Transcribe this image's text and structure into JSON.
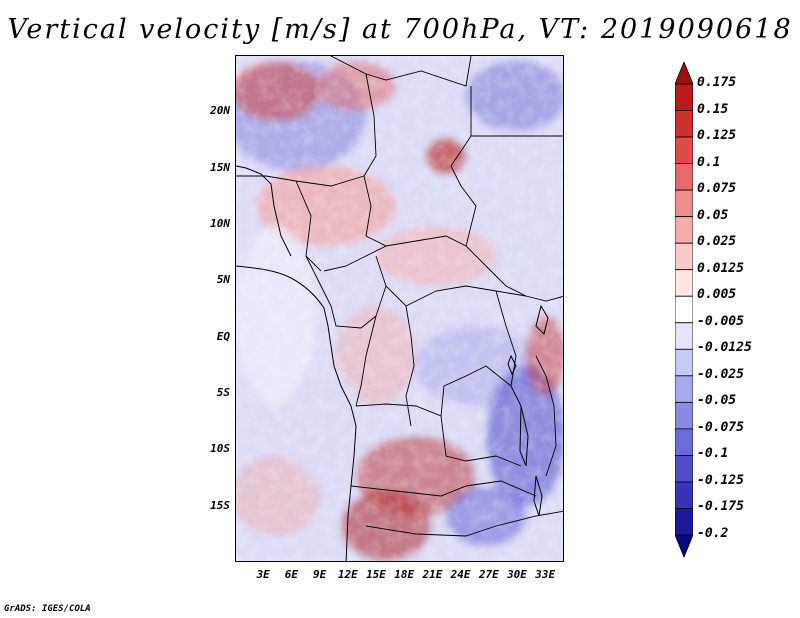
{
  "title": "Vertical velocity [m/s] at 700hPa, VT: 2019090618",
  "footer": "GrADS: IGES/COLA",
  "map": {
    "lat_labels": [
      "20N",
      "15N",
      "10N",
      "5N",
      "EQ",
      "5S",
      "10S",
      "15S"
    ],
    "lat_values": [
      20,
      15,
      10,
      5,
      0,
      -5,
      -10,
      -15
    ],
    "lon_labels": [
      "3E",
      "6E",
      "9E",
      "12E",
      "15E",
      "18E",
      "21E",
      "24E",
      "27E",
      "30E",
      "33E"
    ],
    "lon_values": [
      3,
      6,
      9,
      12,
      15,
      18,
      21,
      24,
      27,
      30,
      33
    ],
    "lon_range": [
      0,
      35
    ],
    "lat_range": [
      -20,
      25
    ],
    "field": "vertical velocity",
    "level": "700hPa",
    "valid_time": "2019090618"
  },
  "colorbar": {
    "levels": [
      "0.175",
      "0.15",
      "0.125",
      "0.1",
      "0.075",
      "0.05",
      "0.025",
      "0.0125",
      "0.005",
      "-0.005",
      "-0.0125",
      "-0.025",
      "-0.05",
      "-0.075",
      "-0.1",
      "-0.125",
      "-0.175",
      "-0.2"
    ],
    "colors": [
      "#a01010",
      "#b81c1c",
      "#cc3030",
      "#dc4a4a",
      "#e66a6a",
      "#ee8c8c",
      "#f4acac",
      "#f8caca",
      "#fce6e6",
      "#ffffff",
      "#e4e4fa",
      "#c8c8f4",
      "#a8a8ec",
      "#8a8ae4",
      "#6c6cd8",
      "#4e4ec8",
      "#3434b4",
      "#1a1a9a",
      "#0a0a7a"
    ]
  }
}
